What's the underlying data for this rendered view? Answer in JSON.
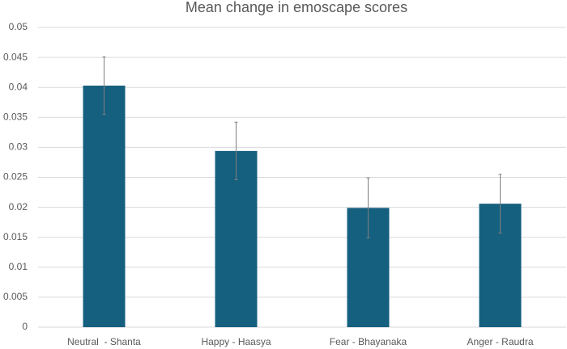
{
  "chart_data": {
    "type": "bar",
    "title": "Mean change in emoscape scores",
    "categories": [
      "Neutral  - Shanta",
      "Happy - Haasya",
      "Fear - Bhayanaka",
      "Anger - Raudra"
    ],
    "values": [
      0.0403,
      0.0294,
      0.0199,
      0.0206
    ],
    "errors": [
      0.0048,
      0.0048,
      0.005,
      0.0049
    ],
    "color": "#16607f",
    "error_color": "#7f7f7f",
    "ylim": [
      0,
      0.05
    ],
    "yticks": [
      0,
      0.005,
      0.01,
      0.015,
      0.02,
      0.025,
      0.03,
      0.035,
      0.04,
      0.045,
      0.05
    ],
    "grid": true
  }
}
